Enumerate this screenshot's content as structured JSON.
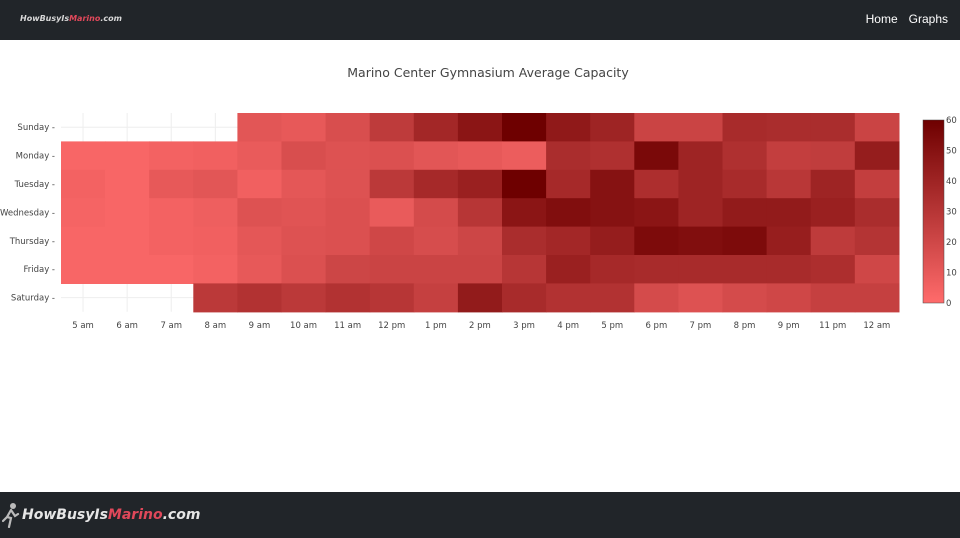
{
  "navbar": {
    "brand": {
      "prefix": "HowBusyIs",
      "highlight": "Marino",
      "suffix": ".com"
    },
    "links": {
      "home": "Home",
      "graphs": "Graphs"
    }
  },
  "footer": {
    "brand": {
      "prefix": "HowBusyIs",
      "highlight": "Marino",
      "suffix": ".com"
    }
  },
  "colors": {
    "navbar_bg": "#212529",
    "scale_low": "#ff6b6b",
    "scale_high": "#6e0000"
  },
  "chart_data": {
    "type": "heatmap",
    "title": "Marino Center Gymnasium Average Capacity",
    "x": [
      "5 am",
      "6 am",
      "7 am",
      "8 am",
      "9 am",
      "10 am",
      "11 am",
      "12 pm",
      "1 pm",
      "2 pm",
      "3 pm",
      "4 pm",
      "5 pm",
      "6 pm",
      "7 pm",
      "8 pm",
      "9 pm",
      "11 pm",
      "12 am"
    ],
    "y": [
      "Sunday",
      "Monday",
      "Tuesday",
      "Wednesday",
      "Thursday",
      "Friday",
      "Saturday"
    ],
    "z": [
      [
        null,
        null,
        null,
        null,
        12,
        10,
        16,
        27,
        38,
        48,
        60,
        46,
        40,
        22,
        22,
        36,
        35,
        35,
        22
      ],
      [
        3,
        3,
        5,
        6,
        9,
        16,
        14,
        15,
        12,
        10,
        8,
        35,
        33,
        55,
        40,
        33,
        25,
        26,
        44
      ],
      [
        5,
        3,
        10,
        12,
        6,
        11,
        14,
        28,
        37,
        42,
        60,
        37,
        50,
        34,
        40,
        36,
        29,
        40,
        25
      ],
      [
        4,
        3,
        5,
        7,
        14,
        13,
        15,
        9,
        18,
        30,
        48,
        52,
        50,
        48,
        40,
        45,
        45,
        42,
        35
      ],
      [
        3,
        3,
        5,
        6,
        11,
        14,
        15,
        20,
        17,
        21,
        35,
        38,
        44,
        54,
        52,
        54,
        43,
        27,
        31
      ],
      [
        3,
        3,
        3,
        5,
        10,
        15,
        21,
        22,
        22,
        22,
        30,
        42,
        37,
        36,
        36,
        36,
        36,
        34,
        20
      ],
      [
        null,
        null,
        null,
        28,
        32,
        28,
        32,
        30,
        24,
        45,
        36,
        32,
        32,
        18,
        14,
        18,
        20,
        24,
        24
      ]
    ],
    "zmin": 0,
    "zmax": 60,
    "colorbar_ticks": [
      0,
      10,
      20,
      30,
      40,
      50,
      60
    ]
  }
}
